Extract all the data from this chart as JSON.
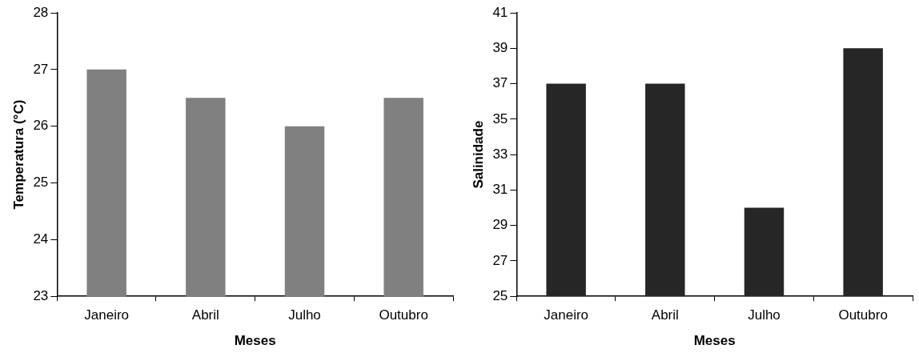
{
  "chart_data": [
    {
      "type": "bar",
      "xlabel": "Meses",
      "ylabel": "Temperatura (°C)",
      "categories": [
        "Janeiro",
        "Abril",
        "Julho",
        "Outubro"
      ],
      "values": [
        27,
        26.5,
        26,
        26.5
      ],
      "color": "#808080",
      "ylim": [
        23,
        28
      ],
      "yticks": [
        23,
        24,
        25,
        26,
        27,
        28
      ],
      "grid": false,
      "legend": false
    },
    {
      "type": "bar",
      "xlabel": "Meses",
      "ylabel": "Salinidade",
      "categories": [
        "Janeiro",
        "Abril",
        "Julho",
        "Outubro"
      ],
      "values": [
        37,
        37,
        30,
        39
      ],
      "color": "#262626",
      "ylim": [
        25,
        41
      ],
      "yticks": [
        25,
        27,
        29,
        31,
        33,
        35,
        37,
        39,
        41
      ],
      "grid": false,
      "legend": false
    }
  ]
}
